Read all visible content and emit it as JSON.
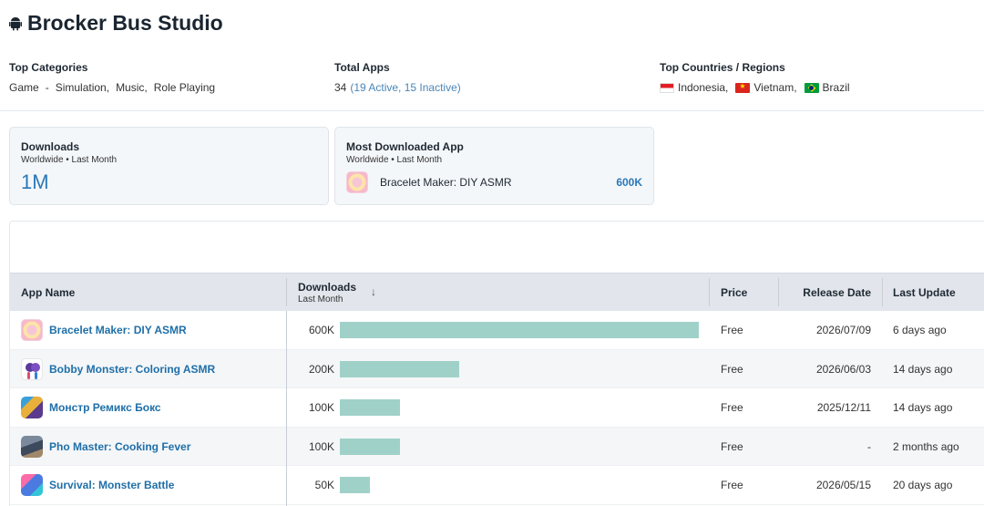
{
  "developer": {
    "title": "Brocker Bus Studio",
    "platform_icon": "android-icon"
  },
  "meta": {
    "categories": {
      "label": "Top Categories",
      "items": [
        "Game",
        "-",
        "Simulation,",
        "Music,",
        "Role Playing"
      ]
    },
    "total_apps": {
      "label": "Total Apps",
      "count": "34",
      "detail": "(19 Active, 15 Inactive)"
    },
    "countries": {
      "label": "Top Countries / Regions",
      "items": [
        {
          "name": "Indonesia,",
          "flag": "flag-indonesia"
        },
        {
          "name": "Vietnam,",
          "flag": "flag-vietnam"
        },
        {
          "name": "Brazil",
          "flag": "flag-brazil"
        }
      ]
    }
  },
  "cards": {
    "downloads": {
      "title": "Downloads",
      "subtitle": "Worldwide • Last Month",
      "value": "1M"
    },
    "most_downloaded": {
      "title": "Most Downloaded App",
      "subtitle": "Worldwide • Last Month",
      "app_name": "Bracelet Maker: DIY ASMR",
      "value": "600K"
    }
  },
  "table": {
    "headers": {
      "app_name": "App Name",
      "downloads": "Downloads",
      "downloads_sub": "Last Month",
      "sort_icon": "↓",
      "price": "Price",
      "release_date": "Release Date",
      "last_update": "Last Update"
    },
    "rows": [
      {
        "name": "Bracelet Maker: DIY ASMR",
        "icon": "bracelet-app-icon",
        "downloads": "600K",
        "downloads_value": 600000,
        "price": "Free",
        "release": "2026/07/09",
        "update": "6 days ago"
      },
      {
        "name": "Bobby Monster: Coloring ASMR",
        "icon": "bobby-app-icon",
        "downloads": "200K",
        "downloads_value": 200000,
        "price": "Free",
        "release": "2026/06/03",
        "update": "14 days ago"
      },
      {
        "name": "Монстр Ремикс Бокс",
        "icon": "monstr-app-icon",
        "downloads": "100K",
        "downloads_value": 100000,
        "price": "Free",
        "release": "2025/12/11",
        "update": "14 days ago"
      },
      {
        "name": "Pho Master: Cooking Fever",
        "icon": "pho-app-icon",
        "downloads": "100K",
        "downloads_value": 100000,
        "price": "Free",
        "release": "-",
        "update": "2 months ago"
      },
      {
        "name": "Survival: Monster Battle",
        "icon": "survival-app-icon",
        "downloads": "50K",
        "downloads_value": 50000,
        "price": "Free",
        "release": "2026/05/15",
        "update": "20 days ago"
      }
    ]
  },
  "colors": {
    "accent": "#2a78b8",
    "link": "#1f6fa8",
    "bar": "#a0d1c8"
  }
}
